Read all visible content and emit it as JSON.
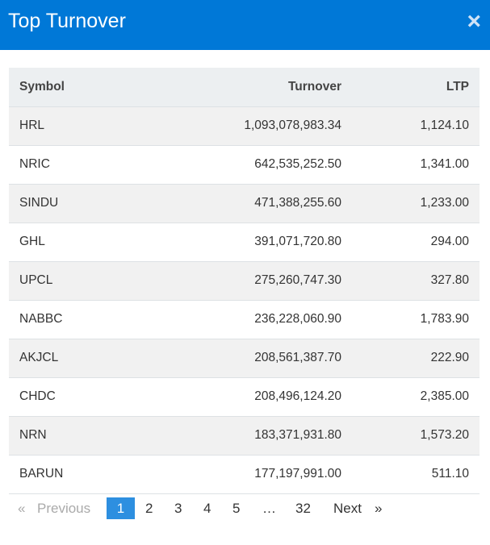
{
  "header": {
    "title": "Top Turnover",
    "close": "×"
  },
  "table": {
    "columns": [
      "Symbol",
      "Turnover",
      "LTP"
    ],
    "rows": [
      [
        "HRL",
        "1,093,078,983.34",
        "1,124.10"
      ],
      [
        "NRIC",
        "642,535,252.50",
        "1,341.00"
      ],
      [
        "SINDU",
        "471,388,255.60",
        "1,233.00"
      ],
      [
        "GHL",
        "391,071,720.80",
        "294.00"
      ],
      [
        "UPCL",
        "275,260,747.30",
        "327.80"
      ],
      [
        "NABBC",
        "236,228,060.90",
        "1,783.90"
      ],
      [
        "AKJCL",
        "208,561,387.70",
        "222.90"
      ],
      [
        "CHDC",
        "208,496,124.20",
        "2,385.00"
      ],
      [
        "NRN",
        "183,371,931.80",
        "1,573.20"
      ],
      [
        "BARUN",
        "177,197,991.00",
        "511.10"
      ]
    ]
  },
  "pagination": {
    "first": "«",
    "previous": "Previous",
    "pages": [
      "1",
      "2",
      "3",
      "4",
      "5",
      "…",
      "32"
    ],
    "current": 0,
    "next": "Next",
    "last": "»"
  }
}
